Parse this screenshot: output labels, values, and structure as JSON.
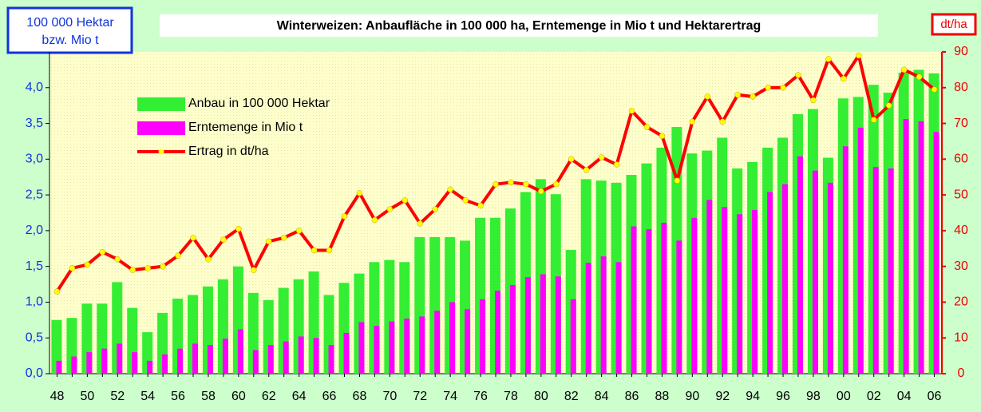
{
  "chart_data": {
    "type": "bar",
    "title": "Winterweizen: Anbaufläche in 100 000 ha, Erntemenge in Mio t und Hektarertrag",
    "y_label": [
      "100 000 Hektar",
      "bzw. Mio t"
    ],
    "y2_label": "dt/ha",
    "legend": "upper left",
    "grid": false,
    "categories": [
      "48",
      null,
      "50",
      null,
      "52",
      null,
      "54",
      null,
      "56",
      null,
      "58",
      null,
      "60",
      null,
      "62",
      null,
      "64",
      null,
      "66",
      null,
      "68",
      null,
      "70",
      null,
      "72",
      null,
      "74",
      null,
      "76",
      null,
      "78",
      null,
      "80",
      null,
      "82",
      null,
      "84",
      null,
      "86",
      null,
      "88",
      null,
      "90",
      null,
      "92",
      null,
      "94",
      null,
      "96",
      null,
      "98",
      null,
      "00",
      null,
      "02",
      null,
      "04",
      null,
      "06"
    ],
    "ylim": [
      0,
      4.5
    ],
    "yticks": [
      {
        "value": 0,
        "label": "0,0"
      },
      {
        "value": 0.5,
        "label": "0,5"
      },
      {
        "value": 1,
        "label": "1,0"
      },
      {
        "value": 1.5,
        "label": "1,5"
      },
      {
        "value": 2,
        "label": "2,0"
      },
      {
        "value": 2.5,
        "label": "2,5"
      },
      {
        "value": 3,
        "label": "3,0"
      },
      {
        "value": 3.5,
        "label": "3,5"
      },
      {
        "value": 4,
        "label": "4,0"
      }
    ],
    "y2lim": [
      0,
      90
    ],
    "y2ticks": [
      0,
      10,
      20,
      30,
      40,
      50,
      60,
      70,
      80,
      90
    ],
    "series": [
      {
        "name": "Anbau in 100 000 Hektar",
        "type": "bar",
        "color": "#33ee33",
        "values": [
          0.75,
          0.78,
          0.98,
          0.98,
          1.28,
          0.92,
          0.58,
          0.85,
          1.05,
          1.1,
          1.22,
          1.32,
          1.5,
          1.13,
          1.03,
          1.2,
          1.32,
          1.43,
          1.1,
          1.27,
          1.4,
          1.56,
          1.59,
          1.56,
          1.91,
          1.91,
          1.91,
          1.86,
          2.18,
          2.18,
          2.31,
          2.54,
          2.72,
          2.51,
          1.73,
          2.72,
          2.7,
          2.67,
          2.78,
          2.94,
          3.16,
          3.45,
          3.08,
          3.12,
          3.3,
          2.87,
          2.96,
          3.16,
          3.3,
          3.63,
          3.7,
          3.02,
          3.85,
          3.87,
          4.04,
          3.93,
          4.21,
          4.25,
          4.2
        ]
      },
      {
        "name": "Erntemenge in Mio t",
        "type": "bar",
        "color": "#ff00ff",
        "values": [
          0.18,
          0.24,
          0.3,
          0.35,
          0.42,
          0.3,
          0.18,
          0.27,
          0.35,
          0.42,
          0.4,
          0.49,
          0.62,
          0.33,
          0.4,
          0.45,
          0.52,
          0.5,
          0.4,
          0.57,
          0.72,
          0.67,
          0.73,
          0.77,
          0.8,
          0.88,
          1.0,
          0.9,
          1.04,
          1.16,
          1.24,
          1.35,
          1.39,
          1.36,
          1.04,
          1.55,
          1.64,
          1.56,
          2.06,
          2.02,
          2.11,
          1.86,
          2.18,
          2.43,
          2.33,
          2.23,
          2.29,
          2.54,
          2.65,
          3.04,
          2.84,
          2.67,
          3.18,
          3.44,
          2.89,
          2.87,
          3.56,
          3.53,
          3.38
        ]
      },
      {
        "name": "Ertrag in dt/ha",
        "type": "line",
        "axis": "y2",
        "color": "#ff0000",
        "marker_color": "#ffff00",
        "values": [
          23,
          29.5,
          30.5,
          34,
          32,
          29,
          29.5,
          30,
          33,
          38,
          32,
          37.5,
          40.5,
          29,
          37,
          38,
          40,
          34.5,
          34.5,
          44,
          50.5,
          43,
          46,
          48.5,
          42,
          46,
          51.5,
          48.5,
          47,
          53,
          53.5,
          53,
          51,
          53,
          60,
          57,
          60.5,
          58.5,
          73.5,
          69,
          66.5,
          54,
          70.5,
          77.5,
          70.5,
          78,
          77.5,
          80,
          80,
          83.5,
          76.5,
          88,
          82.5,
          89,
          71,
          75,
          85,
          83,
          79.5
        ]
      }
    ]
  }
}
